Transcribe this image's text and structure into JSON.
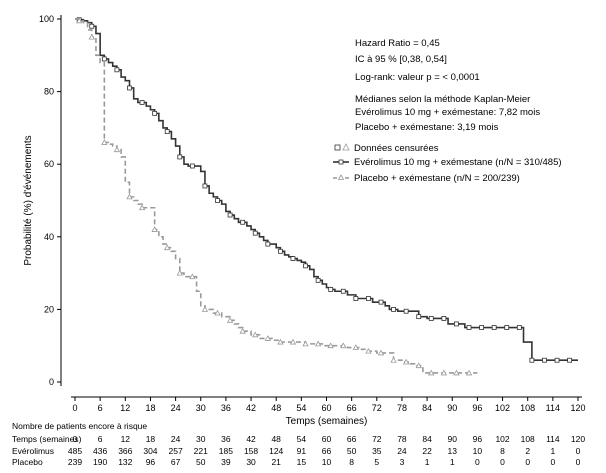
{
  "chart_data": {
    "type": "line",
    "title": "",
    "xlabel": "Temps (semaines)",
    "ylabel": "Probabilité (%) d'événements",
    "xlim": [
      0,
      120
    ],
    "ylim": [
      0,
      100
    ],
    "x_ticks": [
      0,
      6,
      12,
      18,
      24,
      30,
      36,
      42,
      48,
      54,
      60,
      66,
      72,
      78,
      84,
      90,
      96,
      102,
      108,
      114,
      120
    ],
    "y_ticks": [
      0,
      20,
      40,
      60,
      80,
      100
    ],
    "grid": false,
    "legend_position": "right",
    "annotations": [
      "Hazard Ratio = 0,45",
      "IC à 95 % [0,38, 0,54]",
      "Log-rank: valeur p = < 0,0001",
      "Médianes selon la méthode Kaplan-Meier",
      "Evérolimus 10 mg + exémestane: 7,82 mois",
      "Placebo + exémestane: 3,19 mois"
    ],
    "legend": [
      "Données censurées",
      "Evérolimus 10 mg + exémestane (n/N = 310/485)",
      "Placebo + exémestane (n/N = 200/239)"
    ],
    "series": [
      {
        "name": "Evérolimus 10 mg + exémestane (n/N = 310/485)",
        "color": "#333333",
        "style": "solid",
        "points": [
          [
            0,
            100
          ],
          [
            1,
            99.8
          ],
          [
            2,
            99.5
          ],
          [
            3,
            99
          ],
          [
            4,
            98
          ],
          [
            5,
            96
          ],
          [
            6,
            90
          ],
          [
            7,
            89
          ],
          [
            8,
            88
          ],
          [
            9,
            87
          ],
          [
            10,
            86
          ],
          [
            11,
            84
          ],
          [
            12,
            83
          ],
          [
            13,
            81
          ],
          [
            14,
            78
          ],
          [
            15,
            77
          ],
          [
            16,
            77
          ],
          [
            17,
            76
          ],
          [
            18,
            75
          ],
          [
            19,
            74
          ],
          [
            20,
            72
          ],
          [
            21,
            70
          ],
          [
            22,
            69
          ],
          [
            23,
            67
          ],
          [
            24,
            65
          ],
          [
            25,
            62
          ],
          [
            26,
            60
          ],
          [
            27,
            59.5
          ],
          [
            28,
            59.5
          ],
          [
            29,
            59.5
          ],
          [
            30,
            58
          ],
          [
            31,
            54
          ],
          [
            32,
            52
          ],
          [
            33,
            51
          ],
          [
            34,
            50
          ],
          [
            35,
            49
          ],
          [
            36,
            47
          ],
          [
            37,
            46
          ],
          [
            38,
            45
          ],
          [
            39,
            44
          ],
          [
            40,
            44
          ],
          [
            41,
            43
          ],
          [
            42,
            42
          ],
          [
            43,
            41
          ],
          [
            44,
            40
          ],
          [
            45,
            39
          ],
          [
            46,
            38
          ],
          [
            47,
            38
          ],
          [
            48,
            37
          ],
          [
            49,
            36
          ],
          [
            50,
            35
          ],
          [
            51,
            34.5
          ],
          [
            52,
            34
          ],
          [
            53,
            33.5
          ],
          [
            54,
            33
          ],
          [
            55,
            32
          ],
          [
            56,
            31
          ],
          [
            57,
            29
          ],
          [
            58,
            28
          ],
          [
            59,
            27
          ],
          [
            60,
            26
          ],
          [
            61,
            25.5
          ],
          [
            62,
            25
          ],
          [
            63,
            25
          ],
          [
            64,
            25
          ],
          [
            65,
            24
          ],
          [
            66,
            24
          ],
          [
            67,
            23
          ],
          [
            68,
            23
          ],
          [
            69,
            23
          ],
          [
            70,
            23
          ],
          [
            71,
            22
          ],
          [
            72,
            22
          ],
          [
            73,
            22
          ],
          [
            74,
            21
          ],
          [
            75,
            20
          ],
          [
            76,
            20
          ],
          [
            77,
            19.5
          ],
          [
            78,
            19.5
          ],
          [
            79,
            19.5
          ],
          [
            80,
            19.5
          ],
          [
            81,
            19.5
          ],
          [
            82,
            18
          ],
          [
            83,
            18
          ],
          [
            84,
            17.5
          ],
          [
            85,
            17.5
          ],
          [
            86,
            17.5
          ],
          [
            87,
            17.5
          ],
          [
            88,
            17.5
          ],
          [
            89,
            16
          ],
          [
            90,
            16
          ],
          [
            91,
            16
          ],
          [
            92,
            16
          ],
          [
            93,
            15
          ],
          [
            94,
            15
          ],
          [
            95,
            15
          ],
          [
            96,
            15
          ],
          [
            97,
            15
          ],
          [
            98,
            15
          ],
          [
            99,
            15
          ],
          [
            100,
            15
          ],
          [
            101,
            15
          ],
          [
            102,
            15
          ],
          [
            103,
            15
          ],
          [
            104,
            15
          ],
          [
            105,
            15
          ],
          [
            106,
            15
          ],
          [
            107,
            11
          ],
          [
            108,
            11
          ],
          [
            109,
            6
          ],
          [
            110,
            6
          ],
          [
            111,
            6
          ],
          [
            112,
            6
          ],
          [
            113,
            6
          ],
          [
            114,
            6
          ],
          [
            115,
            6
          ],
          [
            116,
            6
          ],
          [
            117,
            6
          ],
          [
            118,
            6
          ],
          [
            119,
            6
          ],
          [
            120,
            6
          ]
        ]
      },
      {
        "name": "Placebo + exémestane (n/N = 200/239)",
        "color": "#999999",
        "style": "dashed",
        "points": [
          [
            0,
            100
          ],
          [
            1,
            99.5
          ],
          [
            2,
            99
          ],
          [
            3,
            97
          ],
          [
            4,
            95
          ],
          [
            5,
            90
          ],
          [
            6,
            88
          ],
          [
            7,
            66
          ],
          [
            8,
            65.5
          ],
          [
            9,
            65
          ],
          [
            10,
            64
          ],
          [
            11,
            62
          ],
          [
            12,
            55
          ],
          [
            13,
            51
          ],
          [
            14,
            50
          ],
          [
            15,
            49
          ],
          [
            16,
            48
          ],
          [
            17,
            48
          ],
          [
            18,
            48
          ],
          [
            19,
            42
          ],
          [
            20,
            40
          ],
          [
            21,
            38
          ],
          [
            22,
            37
          ],
          [
            23,
            36
          ],
          [
            24,
            34
          ],
          [
            25,
            30
          ],
          [
            26,
            29
          ],
          [
            27,
            29
          ],
          [
            28,
            29
          ],
          [
            29,
            25
          ],
          [
            30,
            21
          ],
          [
            31,
            20
          ],
          [
            32,
            20
          ],
          [
            33,
            19
          ],
          [
            34,
            19
          ],
          [
            35,
            18
          ],
          [
            36,
            18
          ],
          [
            37,
            17
          ],
          [
            38,
            16
          ],
          [
            39,
            15
          ],
          [
            40,
            14
          ],
          [
            41,
            14
          ],
          [
            42,
            13
          ],
          [
            43,
            13
          ],
          [
            44,
            12
          ],
          [
            45,
            12
          ],
          [
            46,
            12
          ],
          [
            47,
            11.5
          ],
          [
            48,
            11.5
          ],
          [
            49,
            11
          ],
          [
            50,
            11
          ],
          [
            51,
            11
          ],
          [
            52,
            11
          ],
          [
            53,
            11
          ],
          [
            54,
            11
          ],
          [
            55,
            10.5
          ],
          [
            56,
            10.5
          ],
          [
            57,
            10.5
          ],
          [
            58,
            10.5
          ],
          [
            59,
            10
          ],
          [
            60,
            10
          ],
          [
            61,
            10
          ],
          [
            62,
            10
          ],
          [
            63,
            10
          ],
          [
            64,
            10
          ],
          [
            65,
            9.5
          ],
          [
            66,
            9.5
          ],
          [
            67,
            9.5
          ],
          [
            68,
            9
          ],
          [
            69,
            9
          ],
          [
            70,
            8.5
          ],
          [
            71,
            8.5
          ],
          [
            72,
            8
          ],
          [
            73,
            8
          ],
          [
            74,
            8
          ],
          [
            75,
            8
          ],
          [
            76,
            6
          ],
          [
            77,
            6
          ],
          [
            78,
            5.5
          ],
          [
            79,
            5.5
          ],
          [
            80,
            5
          ],
          [
            81,
            4.5
          ],
          [
            82,
            4.5
          ],
          [
            83,
            2.5
          ],
          [
            84,
            2.5
          ],
          [
            85,
            2.5
          ],
          [
            86,
            2.5
          ],
          [
            87,
            2.5
          ],
          [
            88,
            2.5
          ],
          [
            89,
            2.5
          ],
          [
            90,
            2.5
          ],
          [
            91,
            2.5
          ],
          [
            92,
            2.5
          ],
          [
            93,
            2.5
          ],
          [
            94,
            2.5
          ],
          [
            95,
            2.5
          ],
          [
            96,
            2.5
          ]
        ]
      }
    ],
    "risk_table": {
      "title": "Nombre de patients encore à risque",
      "header": "Temps (semaines)",
      "rows": [
        {
          "label": "Evérolimus",
          "values": [
            485,
            436,
            366,
            304,
            257,
            221,
            185,
            158,
            124,
            91,
            66,
            50,
            35,
            24,
            22,
            13,
            10,
            8,
            2,
            1,
            0
          ]
        },
        {
          "label": "Placebo",
          "values": [
            239,
            190,
            132,
            96,
            67,
            50,
            39,
            30,
            21,
            15,
            10,
            8,
            5,
            3,
            1,
            1,
            0,
            0,
            0,
            0,
            0
          ]
        }
      ]
    }
  }
}
